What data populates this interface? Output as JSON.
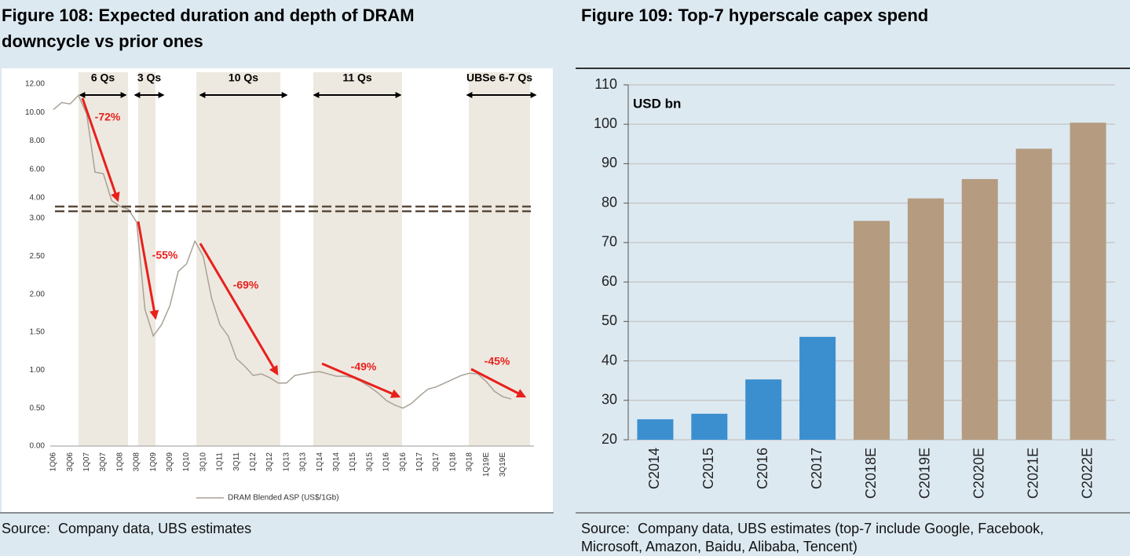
{
  "chart_data": [
    {
      "type": "line",
      "title": "Figure 108: Expected duration and depth of DRAM downcycle vs prior ones",
      "source": "Source:  Company data, UBS estimates",
      "categories": [
        "1Q06",
        null,
        "3Q06",
        null,
        "1Q07",
        null,
        "3Q07",
        null,
        "1Q08",
        null,
        "3Q08",
        null,
        "1Q09",
        null,
        "3Q09",
        null,
        "1Q10",
        null,
        "3Q10",
        null,
        "1Q11",
        null,
        "3Q11",
        null,
        "1Q12",
        null,
        "3Q12",
        null,
        "1Q13",
        null,
        "3Q13",
        null,
        "1Q14",
        null,
        "3Q14",
        null,
        "1Q15",
        null,
        "3Q15",
        null,
        "1Q16",
        null,
        "3Q16",
        null,
        "1Q17",
        null,
        "3Q17",
        null,
        "1Q18",
        null,
        "3Q18",
        null,
        "1Q19E",
        null,
        "3Q19E",
        null
      ],
      "series": [
        {
          "name": "DRAM Blended ASP (US$/1Gb)",
          "color": "#a8a196",
          "values": [
            10.2,
            10.7,
            10.6,
            11.2,
            9.9,
            5.8,
            5.7,
            3.8,
            3.4,
            3.2,
            2.95,
            1.8,
            1.45,
            1.6,
            1.85,
            2.3,
            2.4,
            2.7,
            2.5,
            1.95,
            1.6,
            1.45,
            1.15,
            1.05,
            0.93,
            0.95,
            0.9,
            0.83,
            0.83,
            0.93,
            0.95,
            0.97,
            0.98,
            0.95,
            0.92,
            0.92,
            0.9,
            0.85,
            0.78,
            0.7,
            0.6,
            0.54,
            0.5,
            0.56,
            0.66,
            0.75,
            0.78,
            0.83,
            0.88,
            0.93,
            0.96,
            0.95,
            0.85,
            0.72,
            0.65,
            0.62
          ]
        }
      ],
      "ylim": [
        0,
        12
      ],
      "ybreak": 3,
      "yticks": [
        {
          "value": 0,
          "label": "0.00"
        },
        {
          "value": 0.5,
          "label": "0.50"
        },
        {
          "value": 1,
          "label": "1.00"
        },
        {
          "value": 1.5,
          "label": "1.50"
        },
        {
          "value": 2,
          "label": "2.00"
        },
        {
          "value": 2.5,
          "label": "2.50"
        },
        {
          "value": 3,
          "label": "3.00"
        },
        {
          "value": 4,
          "label": "4.00"
        },
        {
          "value": 6,
          "label": "6.00"
        },
        {
          "value": 8,
          "label": "8.00"
        },
        {
          "value": 10,
          "label": "10.00"
        },
        {
          "value": 12,
          "label": "12.00"
        }
      ],
      "cycle_labels": [
        "6 Qs",
        "3 Qs",
        "10 Qs",
        "11 Qs",
        "UBSe 6-7 Qs"
      ],
      "drop_labels": [
        "-72%",
        "-55%",
        "-69%",
        "-49%",
        "-45%"
      ]
    },
    {
      "type": "bar",
      "title": "Figure 109: Top-7 hyperscale capex spend",
      "source": "Source:  Company data, UBS estimates (top-7 include Google, Facebook, Microsoft, Amazon, Baidu, Alibaba, Tencent)",
      "y_label": "USD bn",
      "categories": [
        "C2014",
        "C2015",
        "C2016",
        "C2017",
        "C2018E",
        "C2019E",
        "C2020E",
        "C2021E",
        "C2022E"
      ],
      "values": [
        25.2,
        26.6,
        35.3,
        46.1,
        75.5,
        81.2,
        86.1,
        93.8,
        100.4
      ],
      "colors": [
        "#3b8fcf",
        "#3b8fcf",
        "#3b8fcf",
        "#3b8fcf",
        "#b59c80",
        "#b59c80",
        "#b59c80",
        "#b59c80",
        "#b59c80"
      ],
      "ylim": [
        20,
        110
      ],
      "yticks": [
        20,
        30,
        40,
        50,
        60,
        70,
        80,
        90,
        100,
        110
      ],
      "grid": true
    }
  ]
}
